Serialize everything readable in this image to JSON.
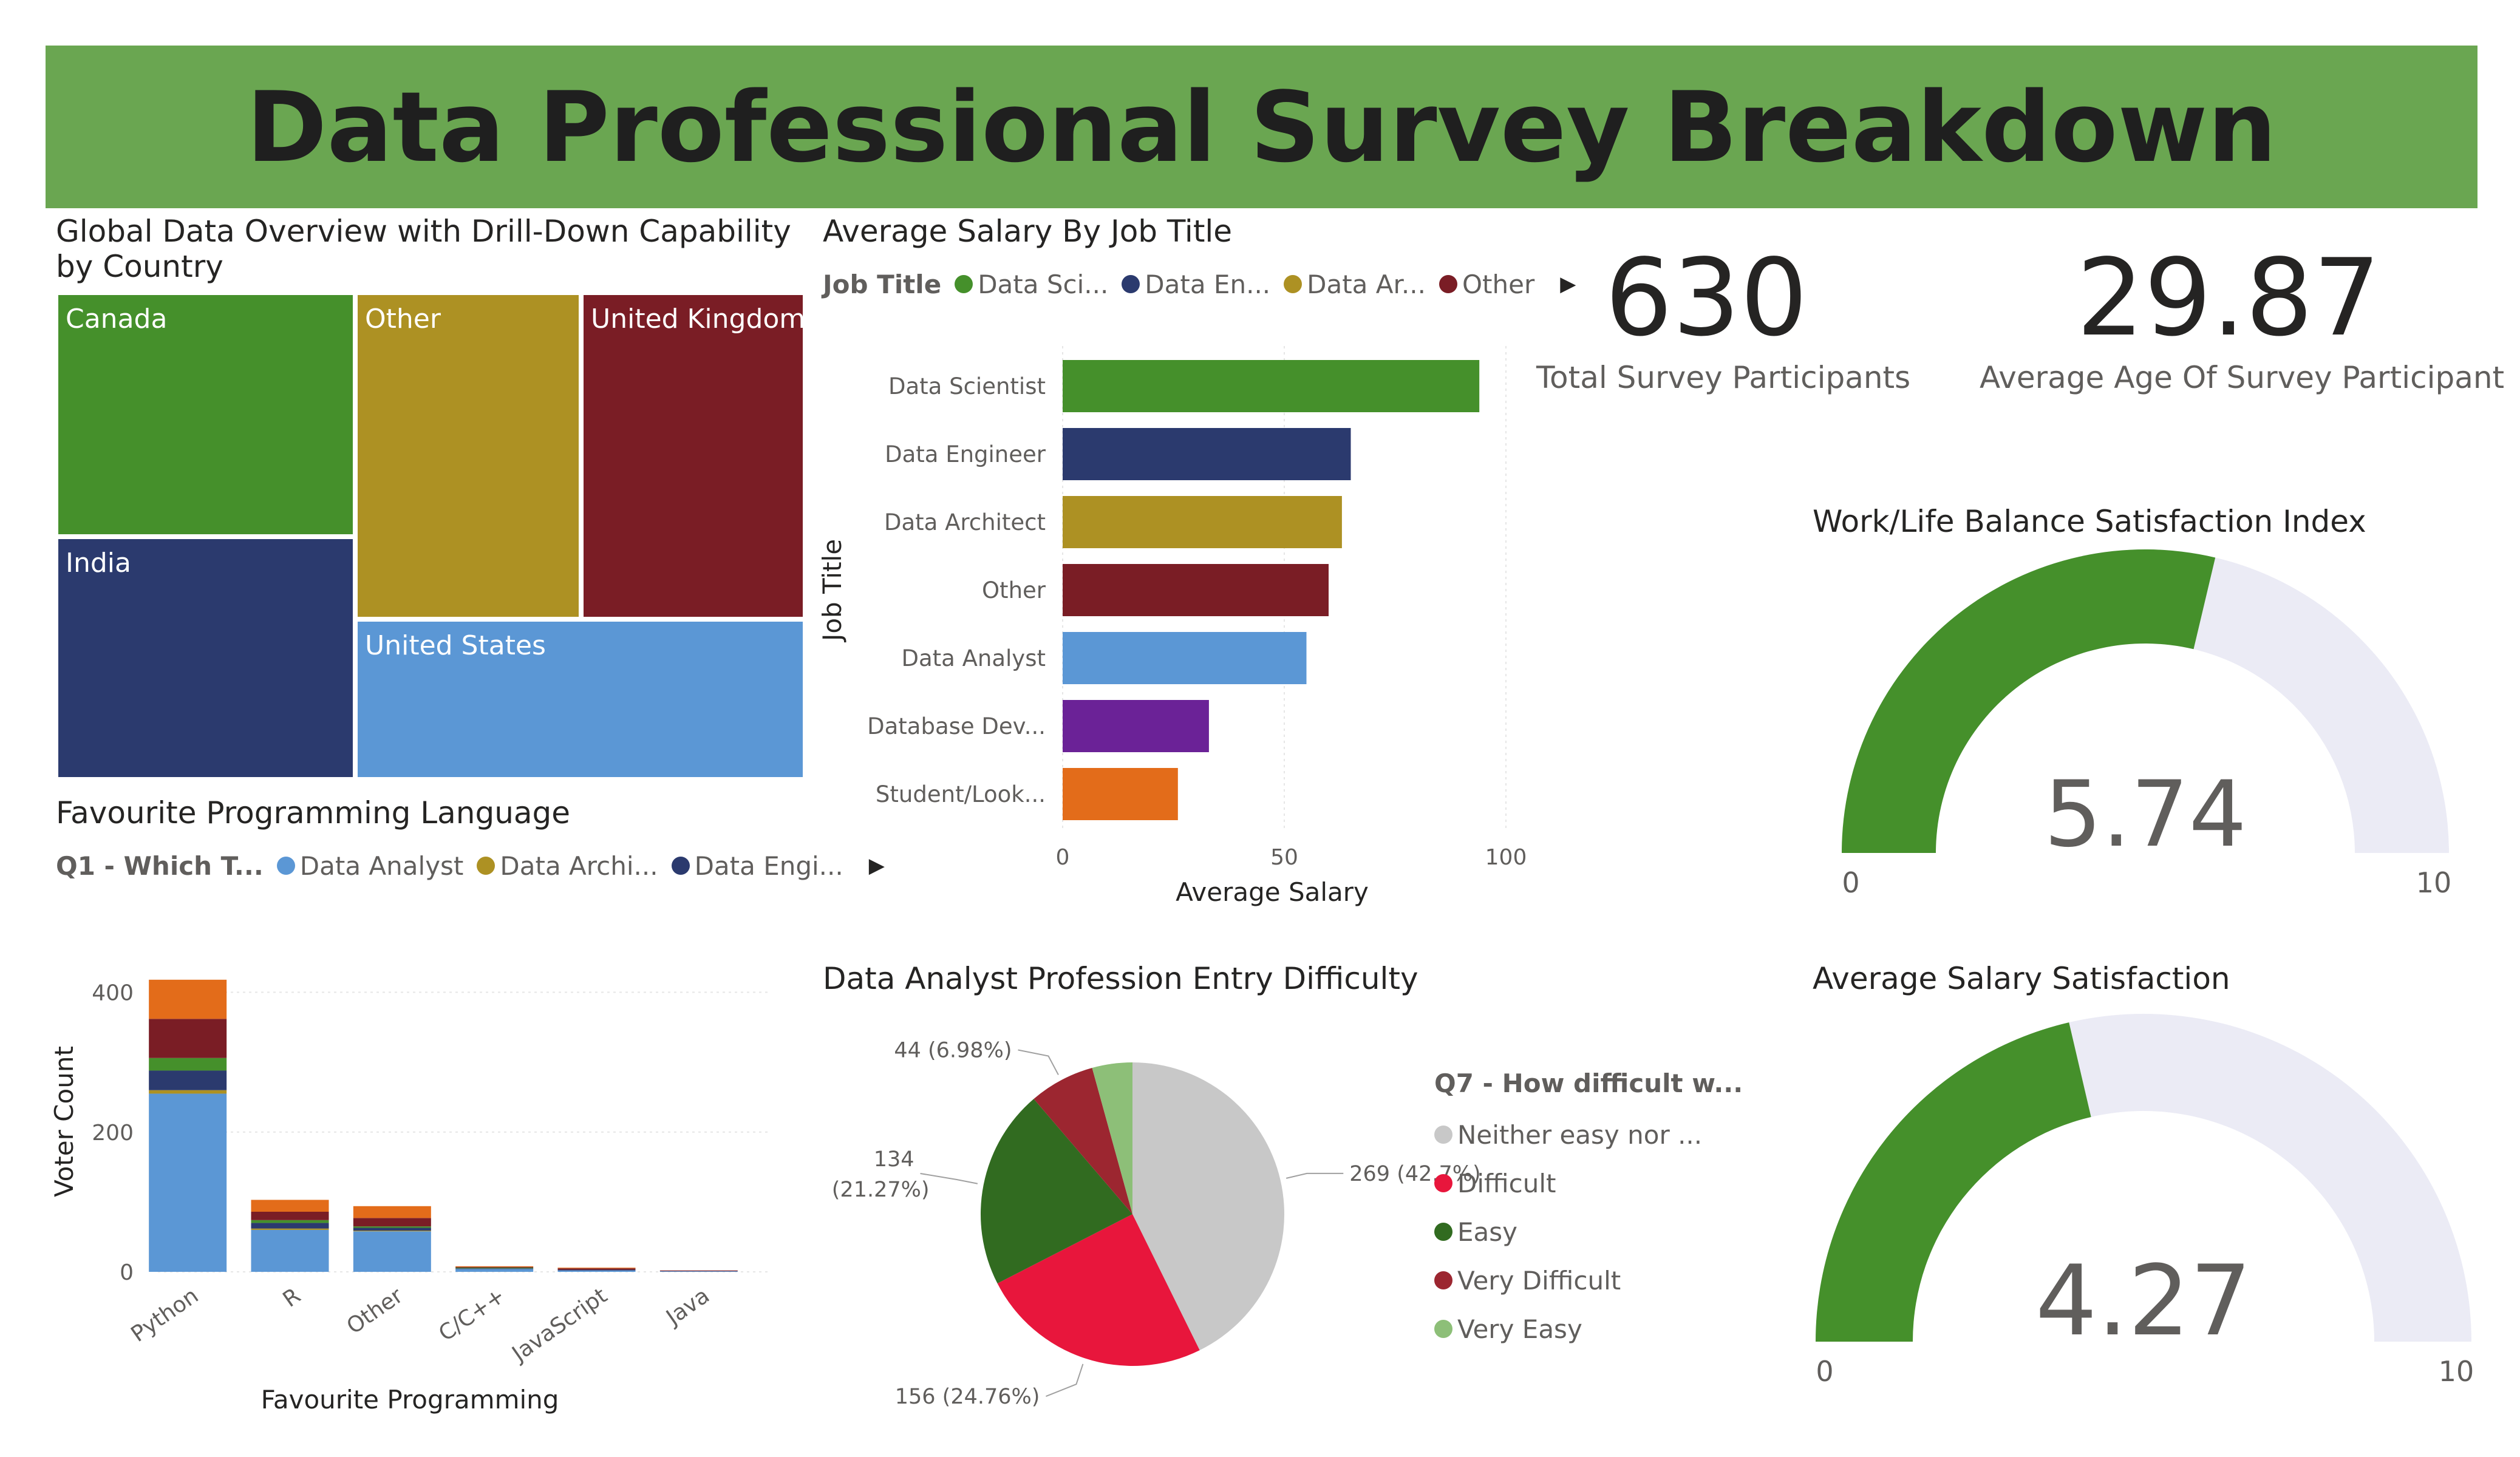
{
  "header": {
    "title": "Data Professional Survey Breakdown",
    "bg_color": "#6aa651"
  },
  "treemap": {
    "title": "Global Data Overview with Drill-Down Capability by Country",
    "items": [
      {
        "label": "Canada",
        "color": "#45902b"
      },
      {
        "label": "India",
        "color": "#2b3a6e"
      },
      {
        "label": "Other",
        "color": "#ad9123"
      },
      {
        "label": "United Kingdom",
        "color": "#7a1d25"
      },
      {
        "label": "United States",
        "color": "#5b97d5"
      }
    ]
  },
  "salary_chart": {
    "title": "Average Salary By Job Title",
    "legend_title": "Job Title",
    "legend_items": [
      {
        "label": "Data Sci...",
        "color": "#45902b"
      },
      {
        "label": "Data En...",
        "color": "#2b3a6e"
      },
      {
        "label": "Data Ar...",
        "color": "#ad9123"
      },
      {
        "label": "Other",
        "color": "#7a1d25"
      }
    ],
    "ylabel": "Job Title",
    "xlabel": "Average Salary"
  },
  "language_chart": {
    "title": "Favourite Programming Language",
    "legend_title": "Q1 - Which T...",
    "legend_items": [
      {
        "label": "Data Analyst",
        "color": "#5b97d5"
      },
      {
        "label": "Data Archi...",
        "color": "#ad9123"
      },
      {
        "label": "Data Engi...",
        "color": "#2b3a6e"
      }
    ],
    "ylabel": "Voter Count",
    "xlabel": "Favourite Programming"
  },
  "difficulty_chart": {
    "title": "Data Analyst Profession Entry Difficulty",
    "legend_title": "Q7 - How difficult w...",
    "legend_items": [
      {
        "label": "Neither easy nor ...",
        "color": "#c8c8c8"
      },
      {
        "label": "Difficult",
        "color": "#e8163c"
      },
      {
        "label": "Easy",
        "color": "#316b20"
      },
      {
        "label": "Very Difficult",
        "color": "#9c2630"
      },
      {
        "label": "Very Easy",
        "color": "#8dbf78"
      }
    ]
  },
  "cards": {
    "participants": {
      "value": "630",
      "label": "Total Survey Participants"
    },
    "age": {
      "value": "29.87",
      "label": "Average Age Of Survey Participant"
    }
  },
  "gauges": {
    "worklife": {
      "title": "Work/Life Balance Satisfaction Index",
      "value_text": "5.74",
      "min_text": "0",
      "max_text": "10"
    },
    "salary": {
      "title": "Average Salary Satisfaction",
      "value_text": "4.27",
      "min_text": "0",
      "max_text": "10"
    }
  },
  "chart_data": [
    {
      "type": "treemap",
      "title": "Global Data Overview with Drill-Down Capability by Country",
      "categories": [
        "Canada",
        "India",
        "Other",
        "United Kingdom",
        "United States"
      ]
    },
    {
      "type": "bar",
      "orientation": "horizontal",
      "title": "Average Salary By Job Title",
      "categories": [
        "Data Scientist",
        "Data Engineer",
        "Data Architect",
        "Other",
        "Data Analyst",
        "Database Dev...",
        "Student/Look..."
      ],
      "values": [
        94,
        65,
        63,
        60,
        55,
        33,
        26
      ],
      "colors": [
        "#45902b",
        "#2b3a6e",
        "#ad9123",
        "#7a1d25",
        "#5b97d5",
        "#6b2297",
        "#e36c1a"
      ],
      "xlabel": "Average Salary",
      "ylabel": "Job Title",
      "xlim": [
        0,
        100
      ],
      "xticks": [
        0,
        50,
        100
      ]
    },
    {
      "type": "bar",
      "stacked": true,
      "title": "Favourite Programming Language",
      "categories": [
        "Python",
        "R",
        "Other",
        "C/C++",
        "JavaScript",
        "Java"
      ],
      "series": [
        {
          "name": "Data Analyst",
          "color": "#5b97d5",
          "values": [
            255,
            60,
            58,
            4,
            2,
            1
          ]
        },
        {
          "name": "Data Archi...",
          "color": "#ad9123",
          "values": [
            5,
            2,
            1,
            0,
            0,
            0
          ]
        },
        {
          "name": "Data Engi...",
          "color": "#2b3a6e",
          "values": [
            28,
            8,
            4,
            1,
            1,
            0
          ]
        },
        {
          "color": "#45902b",
          "values": [
            18,
            4,
            2,
            1,
            0,
            0
          ]
        },
        {
          "color": "#7a1d25",
          "values": [
            56,
            12,
            12,
            1,
            2,
            1
          ]
        },
        {
          "color": "#e36c1a",
          "values": [
            56,
            17,
            17,
            1,
            1,
            0
          ]
        }
      ],
      "xlabel": "Favourite Programming",
      "ylabel": "Voter Count",
      "ylim": [
        0,
        430
      ],
      "yticks": [
        0,
        200,
        400
      ]
    },
    {
      "type": "pie",
      "title": "Data Analyst Profession Entry Difficulty",
      "slices": [
        {
          "label": "Neither easy nor ...",
          "value": 269,
          "percent": "42.7%",
          "text": "269 (42.7%)",
          "color": "#c8c8c8"
        },
        {
          "label": "Difficult",
          "value": 156,
          "percent": "24.76%",
          "text": "156 (24.76%)",
          "color": "#e8163c"
        },
        {
          "label": "Easy",
          "value": 134,
          "percent": "21.27%",
          "text": "134",
          "text2": "(21.27%)",
          "color": "#316b20"
        },
        {
          "label": "Very Difficult",
          "value": 44,
          "percent": "6.98%",
          "text": "44 (6.98%)",
          "color": "#9c2630"
        },
        {
          "label": "Very Easy",
          "value": 27,
          "percent": "4.29%",
          "color": "#8dbf78"
        }
      ]
    },
    {
      "type": "gauge",
      "title": "Work/Life Balance Satisfaction Index",
      "value": 5.74,
      "min": 0,
      "max": 10,
      "fill_color": "#45902b",
      "track_color": "#ebebf5"
    },
    {
      "type": "gauge",
      "title": "Average Salary Satisfaction",
      "value": 4.27,
      "min": 0,
      "max": 10,
      "fill_color": "#45902b",
      "track_color": "#ebebf5"
    }
  ]
}
